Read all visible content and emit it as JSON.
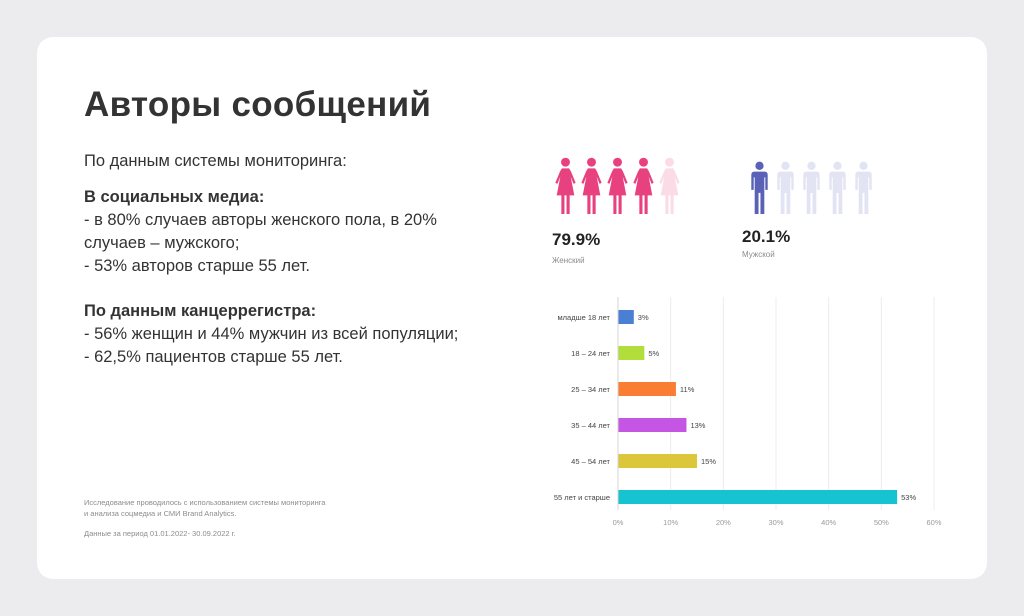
{
  "title": "Авторы сообщений",
  "intro": "По данным системы мониторинга:",
  "social": {
    "heading": "В социальных медиа:",
    "line1": "- в 80% случаев авторы женского пола, в 20%",
    "line2": "случаев – мужского;",
    "line3": "- 53% авторов старше 55 лет."
  },
  "registry": {
    "heading": "По данным канцеррегистра:",
    "line1": "- 56% женщин и 44% мужчин из всей популяции;",
    "line2": "- 62,5% пациентов старше 55 лет."
  },
  "notes": {
    "line1": "Исследование проводилось с использованием системы мониторинга",
    "line2": "и анализа соцмедиа и СМИ Brand Analytics.",
    "period": "Данные за период 01.01.2022- 30.09.2022 г."
  },
  "gender": {
    "female": {
      "value": 79.9,
      "filled_icons": 4,
      "total_icons": 5,
      "pct_text": "79.9%",
      "label": "Женский",
      "color": "#e8417f",
      "light_color": "#fbdbe6"
    },
    "male": {
      "value": 20.1,
      "filled_icons": 1,
      "total_icons": 5,
      "pct_text": "20.1%",
      "label": "Мужской",
      "color": "#5a62b8",
      "light_color": "#e2e3f3"
    }
  },
  "chart_data": {
    "type": "bar",
    "orientation": "horizontal",
    "categories": [
      "младше 18 лет",
      "18 – 24 лет",
      "25 – 34 лет",
      "35 – 44 лет",
      "45 – 54 лет",
      "55 лет и старше"
    ],
    "values": [
      3,
      5,
      11,
      13,
      15,
      53
    ],
    "value_labels": [
      "3%",
      "5%",
      "11%",
      "13%",
      "15%",
      "53%"
    ],
    "colors": [
      "#4a7fd4",
      "#b2de3c",
      "#f97e34",
      "#c456e3",
      "#dcc63a",
      "#17c3d0"
    ],
    "xlim": [
      0,
      60
    ],
    "xticks": [
      0,
      10,
      20,
      30,
      40,
      50,
      60
    ],
    "xtick_labels": [
      "0%",
      "10%",
      "20%",
      "30%",
      "40%",
      "50%",
      "60%"
    ],
    "grid": true,
    "title": "",
    "xlabel": "",
    "ylabel": ""
  }
}
